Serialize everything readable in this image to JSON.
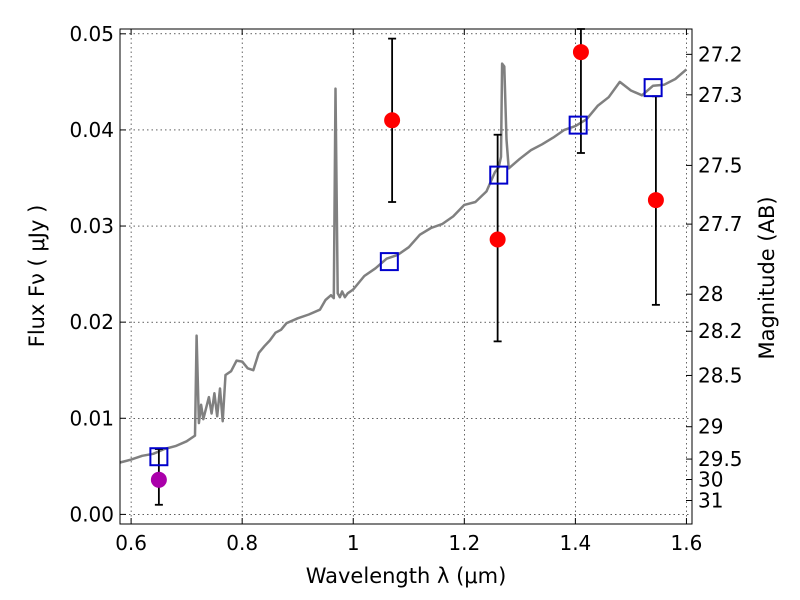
{
  "chart_data": {
    "type": "scatter",
    "title": "",
    "xlabel": "Wavelength  λ (μm)",
    "ylabel": "Flux  Fν  ( μJy )",
    "y2label": "Magnitude (AB)",
    "xlim": [
      0.58,
      1.61
    ],
    "ylim": [
      -0.001,
      0.0505
    ],
    "grid": true,
    "x_ticks": [
      {
        "v": 0.6,
        "label": "0.6"
      },
      {
        "v": 0.8,
        "label": "0.8"
      },
      {
        "v": 1.0,
        "label": "1"
      },
      {
        "v": 1.2,
        "label": "1.2"
      },
      {
        "v": 1.4,
        "label": "1.4"
      },
      {
        "v": 1.6,
        "label": "1.6"
      }
    ],
    "y_ticks": [
      {
        "v": 0.0,
        "label": "0.00"
      },
      {
        "v": 0.01,
        "label": "0.01"
      },
      {
        "v": 0.02,
        "label": "0.02"
      },
      {
        "v": 0.03,
        "label": "0.03"
      },
      {
        "v": 0.04,
        "label": "0.04"
      },
      {
        "v": 0.05,
        "label": "0.05"
      }
    ],
    "mag_ticks": [
      "27.2",
      "27.3",
      "27.5",
      "27.7",
      "28",
      "28.2",
      "28.5",
      "29",
      "29.5",
      "30",
      "31"
    ],
    "model_spectrum": {
      "color": "#808080",
      "x": [
        0.58,
        0.6,
        0.62,
        0.64,
        0.66,
        0.68,
        0.7,
        0.715,
        0.718,
        0.722,
        0.726,
        0.73,
        0.74,
        0.745,
        0.75,
        0.755,
        0.76,
        0.765,
        0.77,
        0.78,
        0.79,
        0.8,
        0.81,
        0.82,
        0.83,
        0.84,
        0.85,
        0.86,
        0.87,
        0.88,
        0.9,
        0.92,
        0.94,
        0.95,
        0.96,
        0.965,
        0.968,
        0.972,
        0.976,
        0.98,
        0.985,
        0.99,
        1.0,
        1.02,
        1.04,
        1.06,
        1.08,
        1.1,
        1.12,
        1.14,
        1.16,
        1.18,
        1.2,
        1.22,
        1.24,
        1.255,
        1.262,
        1.266,
        1.268,
        1.272,
        1.276,
        1.28,
        1.29,
        1.3,
        1.32,
        1.34,
        1.36,
        1.38,
        1.4,
        1.42,
        1.44,
        1.46,
        1.48,
        1.5,
        1.52,
        1.54,
        1.56,
        1.58,
        1.6
      ],
      "y": [
        0.0054,
        0.0057,
        0.0061,
        0.0063,
        0.0068,
        0.0071,
        0.0076,
        0.0082,
        0.0186,
        0.0095,
        0.0114,
        0.0099,
        0.0122,
        0.0105,
        0.0126,
        0.0102,
        0.0131,
        0.0097,
        0.0145,
        0.0149,
        0.016,
        0.0159,
        0.0152,
        0.015,
        0.0168,
        0.0175,
        0.0181,
        0.0189,
        0.0192,
        0.0199,
        0.0204,
        0.0208,
        0.0213,
        0.0223,
        0.0228,
        0.0225,
        0.0443,
        0.023,
        0.0226,
        0.0232,
        0.0226,
        0.023,
        0.0234,
        0.0248,
        0.0256,
        0.0266,
        0.027,
        0.0278,
        0.0291,
        0.0298,
        0.0302,
        0.031,
        0.0322,
        0.0325,
        0.0336,
        0.0356,
        0.0361,
        0.0372,
        0.0469,
        0.0466,
        0.039,
        0.036,
        0.0365,
        0.037,
        0.0379,
        0.0385,
        0.0392,
        0.04,
        0.0404,
        0.0411,
        0.0425,
        0.0434,
        0.045,
        0.0441,
        0.0436,
        0.0446,
        0.0447,
        0.0453,
        0.0463
      ]
    },
    "model_photometry": {
      "color": "#0000cc",
      "marker": "square",
      "x": [
        0.65,
        1.065,
        1.262,
        1.405,
        1.54
      ],
      "y": [
        0.006,
        0.0263,
        0.0353,
        0.0405,
        0.0444
      ]
    },
    "observed": [
      {
        "x": 0.65,
        "y": 0.0036,
        "err_low": 0.001,
        "err_high": 0.0068,
        "color": "#aa00aa"
      },
      {
        "x": 1.07,
        "y": 0.041,
        "err_low": 0.0325,
        "err_high": 0.0495,
        "color": "#ff0000"
      },
      {
        "x": 1.26,
        "y": 0.0286,
        "err_low": 0.018,
        "err_high": 0.0395,
        "color": "#ff0000"
      },
      {
        "x": 1.41,
        "y": 0.0481,
        "err_low": 0.0376,
        "err_high": 0.0505,
        "color": "#ff0000"
      },
      {
        "x": 1.545,
        "y": 0.0327,
        "err_low": 0.0218,
        "err_high": 0.0435,
        "color": "#ff0000"
      }
    ]
  }
}
